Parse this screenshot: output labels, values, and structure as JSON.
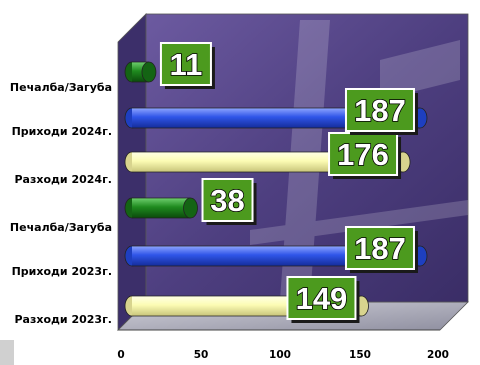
{
  "chart_data": {
    "type": "bar",
    "orientation": "horizontal",
    "three_d": true,
    "categories": [
      "Разходи 2023г.",
      "Приходи 2023г.",
      "Печалба/Загуба",
      "Разходи 2024г.",
      "Приходи 2024г.",
      "Печалба/Загуба"
    ],
    "values": [
      149,
      187,
      38,
      176,
      187,
      11
    ],
    "bar_colors": [
      "#fcfcb4",
      "#2f55e8",
      "#1f8a1f",
      "#fcfcb4",
      "#2f55e8",
      "#1f8a1f"
    ],
    "x_ticks": [
      "0",
      "50",
      "100",
      "150",
      "200"
    ],
    "xlim": [
      0,
      200
    ],
    "data_labels": [
      "149",
      "187",
      "38",
      "176",
      "187",
      "11"
    ],
    "data_label_box_color": "#4c9a1e",
    "plot_background": "#5a4a86",
    "grid": false,
    "legend": "none"
  }
}
